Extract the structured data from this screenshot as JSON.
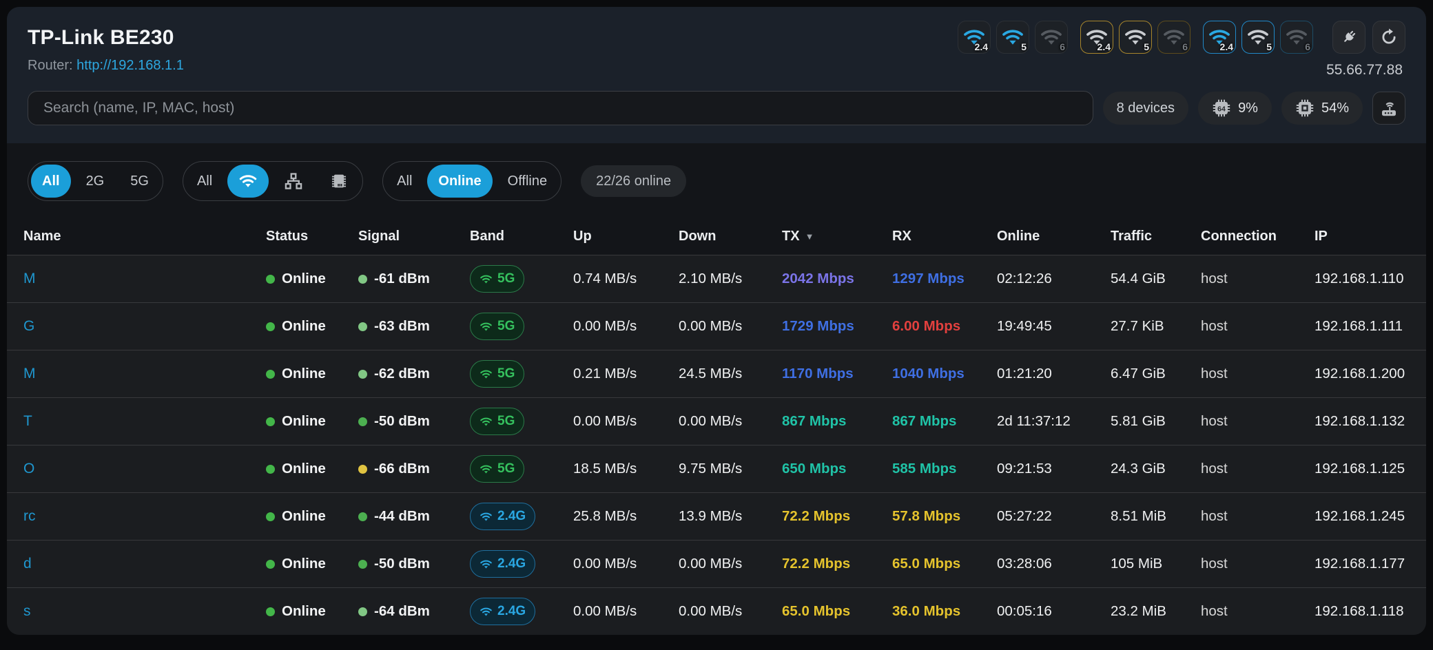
{
  "header": {
    "title": "TP-Link BE230",
    "router_label": "Router:",
    "router_url": "http://192.168.1.1",
    "wan_ip": "55.66.77.88",
    "band_groups": [
      {
        "border": "none",
        "bands": [
          {
            "label": "2.4",
            "state": "on"
          },
          {
            "label": "5",
            "state": "on"
          },
          {
            "label": "6",
            "state": "off"
          }
        ]
      },
      {
        "border": "gold",
        "bands": [
          {
            "label": "2.4",
            "state": "idle"
          },
          {
            "label": "5",
            "state": "idle"
          },
          {
            "label": "6",
            "state": "off"
          }
        ]
      },
      {
        "border": "blue",
        "bands": [
          {
            "label": "2.4",
            "state": "on"
          },
          {
            "label": "5",
            "state": "idle"
          },
          {
            "label": "6",
            "state": "off"
          }
        ]
      }
    ]
  },
  "search": {
    "placeholder": "Search (name, IP, MAC, host)"
  },
  "stats": {
    "devices": "8 devices",
    "cpu_pct": "9%",
    "cpu_chip_text": "64",
    "mem_pct": "54%"
  },
  "filters": {
    "band_segment": {
      "options": [
        {
          "label": "All",
          "selected": true
        },
        {
          "label": "2G",
          "selected": false
        },
        {
          "label": "5G",
          "selected": false
        }
      ]
    },
    "type_segment": {
      "options": [
        {
          "label": "All",
          "selected": false
        },
        {
          "icon": "wifi",
          "selected": true
        },
        {
          "icon": "lan",
          "selected": false
        },
        {
          "icon": "chip",
          "selected": false
        }
      ]
    },
    "status_segment": {
      "options": [
        {
          "label": "All",
          "selected": false
        },
        {
          "label": "Online",
          "selected": true
        },
        {
          "label": "Offline",
          "selected": false
        }
      ]
    },
    "online_badge": "22/26 online"
  },
  "colors": {
    "accent_blue": "#1b9fd9",
    "band_5g_green": "#35c15e",
    "band_24g_blue": "#2aa7e2",
    "signal_levels": {
      "good": "#4caf50",
      "ok": "#81c784",
      "fair": "#e0c341"
    },
    "status_online_dot": "#43b649",
    "speed": {
      "purple": "#7b74e8",
      "blue": "#3f6fe3",
      "teal": "#20c3a7",
      "yellow": "#e5c32d",
      "red": "#e2403e"
    }
  },
  "table": {
    "columns": [
      "Name",
      "Status",
      "Signal",
      "Band",
      "Up",
      "Down",
      "TX",
      "RX",
      "Online",
      "Traffic",
      "Connection",
      "IP"
    ],
    "sorted_column": "TX",
    "sort_direction": "desc",
    "rows": [
      {
        "name": "M",
        "status": "Online",
        "signal": "-61 dBm",
        "signal_level": "ok",
        "band": "5G",
        "up": "0.74 MB/s",
        "down": "2.10 MB/s",
        "tx": "2042 Mbps",
        "tx_color": "purple",
        "rx": "1297 Mbps",
        "rx_color": "blue",
        "online": "02:12:26",
        "traffic": "54.4 GiB",
        "connection": "host",
        "ip": "192.168.1.110"
      },
      {
        "name": "G",
        "status": "Online",
        "signal": "-63 dBm",
        "signal_level": "ok",
        "band": "5G",
        "up": "0.00 MB/s",
        "down": "0.00 MB/s",
        "tx": "1729 Mbps",
        "tx_color": "blue",
        "rx": "6.00 Mbps",
        "rx_color": "red",
        "online": "19:49:45",
        "traffic": "27.7 KiB",
        "connection": "host",
        "ip": "192.168.1.111"
      },
      {
        "name": "M",
        "status": "Online",
        "signal": "-62 dBm",
        "signal_level": "ok",
        "band": "5G",
        "up": "0.21 MB/s",
        "down": "24.5 MB/s",
        "tx": "1170 Mbps",
        "tx_color": "blue",
        "rx": "1040 Mbps",
        "rx_color": "blue",
        "online": "01:21:20",
        "traffic": "6.47 GiB",
        "connection": "host",
        "ip": "192.168.1.200"
      },
      {
        "name": "T",
        "status": "Online",
        "signal": "-50 dBm",
        "signal_level": "good",
        "band": "5G",
        "up": "0.00 MB/s",
        "down": "0.00 MB/s",
        "tx": "867 Mbps",
        "tx_color": "teal",
        "rx": "867 Mbps",
        "rx_color": "teal",
        "online": "2d 11:37:12",
        "traffic": "5.81 GiB",
        "connection": "host",
        "ip": "192.168.1.132"
      },
      {
        "name": "O",
        "status": "Online",
        "signal": "-66 dBm",
        "signal_level": "fair",
        "band": "5G",
        "up": "18.5 MB/s",
        "down": "9.75 MB/s",
        "tx": "650 Mbps",
        "tx_color": "teal",
        "rx": "585 Mbps",
        "rx_color": "teal",
        "online": "09:21:53",
        "traffic": "24.3 GiB",
        "connection": "host",
        "ip": "192.168.1.125"
      },
      {
        "name": "rc",
        "status": "Online",
        "signal": "-44 dBm",
        "signal_level": "good",
        "band": "2.4G",
        "up": "25.8 MB/s",
        "down": "13.9 MB/s",
        "tx": "72.2 Mbps",
        "tx_color": "yellow",
        "rx": "57.8 Mbps",
        "rx_color": "yellow",
        "online": "05:27:22",
        "traffic": "8.51 MiB",
        "connection": "host",
        "ip": "192.168.1.245"
      },
      {
        "name": "d",
        "status": "Online",
        "signal": "-50 dBm",
        "signal_level": "good",
        "band": "2.4G",
        "up": "0.00 MB/s",
        "down": "0.00 MB/s",
        "tx": "72.2 Mbps",
        "tx_color": "yellow",
        "rx": "65.0 Mbps",
        "rx_color": "yellow",
        "online": "03:28:06",
        "traffic": "105 MiB",
        "connection": "host",
        "ip": "192.168.1.177"
      },
      {
        "name": "s",
        "status": "Online",
        "signal": "-64 dBm",
        "signal_level": "ok",
        "band": "2.4G",
        "up": "0.00 MB/s",
        "down": "0.00 MB/s",
        "tx": "65.0 Mbps",
        "tx_color": "yellow",
        "rx": "36.0 Mbps",
        "rx_color": "yellow",
        "online": "00:05:16",
        "traffic": "23.2 MiB",
        "connection": "host",
        "ip": "192.168.1.118"
      }
    ]
  }
}
